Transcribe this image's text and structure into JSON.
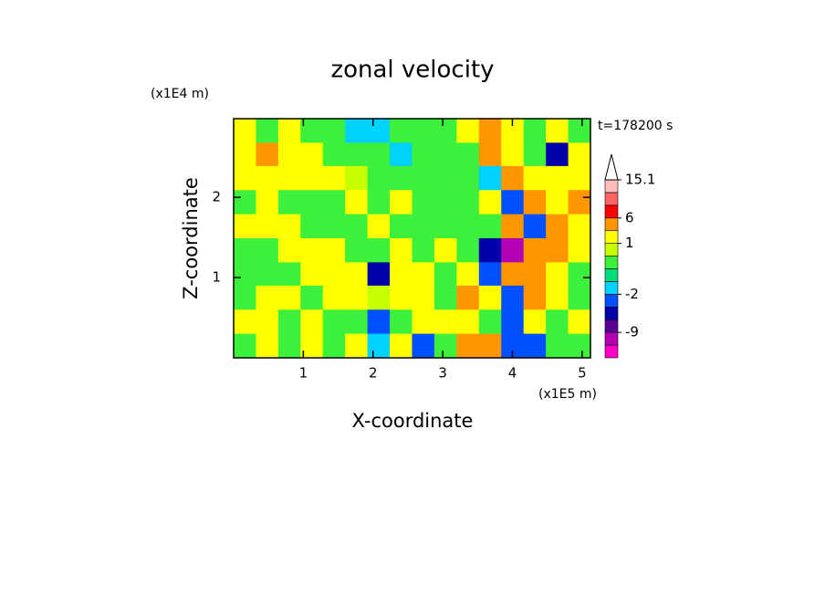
{
  "chart_data": {
    "type": "contour",
    "title": "zonal velocity",
    "xlabel": "X-coordinate",
    "ylabel": "Z-coordinate",
    "x_unit": "(x1E5 m)",
    "y_unit": "(x1E4 m)",
    "time_label": "t=178200 s",
    "xlim": [
      0,
      5.12
    ],
    "ylim": [
      0,
      2.98
    ],
    "xticks": [
      1,
      2,
      3,
      4,
      5
    ],
    "yticks": [
      1,
      2
    ],
    "x": [
      0.16,
      0.48,
      0.8,
      1.12,
      1.44,
      1.76,
      2.08,
      2.4,
      2.72,
      3.04,
      3.36,
      3.68,
      4.0,
      4.32,
      4.64,
      4.96
    ],
    "y": [
      2.83,
      2.53,
      2.24,
      1.94,
      1.64,
      1.34,
      1.04,
      0.75,
      0.45,
      0.15
    ],
    "z": [
      [
        2,
        0.3,
        2,
        0.3,
        0.3,
        -1.5,
        -1.5,
        0.3,
        0.3,
        0.3,
        2,
        4,
        2,
        0.3,
        2,
        0.3
      ],
      [
        2,
        4,
        2,
        2,
        0.3,
        0.3,
        0.3,
        -1.5,
        0.3,
        0.3,
        0.3,
        4,
        2,
        0.3,
        -5,
        2
      ],
      [
        2,
        2,
        2,
        2,
        2,
        0.7,
        0.3,
        0.3,
        0.3,
        0.3,
        0.3,
        -1.5,
        4,
        2,
        2,
        2
      ],
      [
        0.3,
        2,
        0.3,
        0.3,
        0.3,
        2,
        0.3,
        2,
        0.3,
        0.3,
        0.3,
        2,
        -3,
        4,
        2,
        4
      ],
      [
        2,
        2,
        2,
        0.3,
        0.3,
        0.3,
        2,
        0.3,
        0.3,
        0.3,
        0.3,
        0.3,
        4,
        -3,
        4,
        2
      ],
      [
        0.3,
        0.3,
        2,
        2,
        2,
        0.3,
        0.3,
        2,
        0.3,
        2,
        0.3,
        -5,
        -10,
        4,
        4,
        2
      ],
      [
        0.3,
        0.3,
        0.3,
        2,
        2,
        2,
        -5,
        2,
        2,
        0.3,
        2,
        -3,
        4,
        4,
        2,
        0.3
      ],
      [
        0.3,
        2,
        2,
        0.3,
        2,
        2,
        0.7,
        2,
        2,
        0.3,
        4,
        2,
        -3,
        4,
        2,
        0.3
      ],
      [
        2,
        2,
        0.3,
        2,
        0.3,
        0.3,
        -3,
        0.3,
        2,
        2,
        2,
        0.3,
        -3,
        2,
        0.3,
        2
      ],
      [
        0.3,
        2,
        0.3,
        2,
        0.3,
        2,
        -1.5,
        2,
        -3,
        0.3,
        4,
        4,
        -3,
        -3,
        0.3,
        0.3
      ]
    ],
    "colorbar": {
      "levels": [
        -15,
        -12,
        -9,
        -6,
        -4,
        -2,
        -1,
        0,
        0.5,
        1,
        3,
        6,
        9,
        12,
        15.1
      ],
      "colors": [
        "#ff00c8",
        "#b400b4",
        "#5a0096",
        "#0000aa",
        "#0050ff",
        "#00d2ff",
        "#00dc78",
        "#3cf03c",
        "#c8ff00",
        "#ffff00",
        "#ff9600",
        "#ff0000",
        "#ff6464",
        "#ffbcbc"
      ],
      "ticks": [
        15.1,
        6,
        1,
        -2,
        -9
      ]
    }
  }
}
